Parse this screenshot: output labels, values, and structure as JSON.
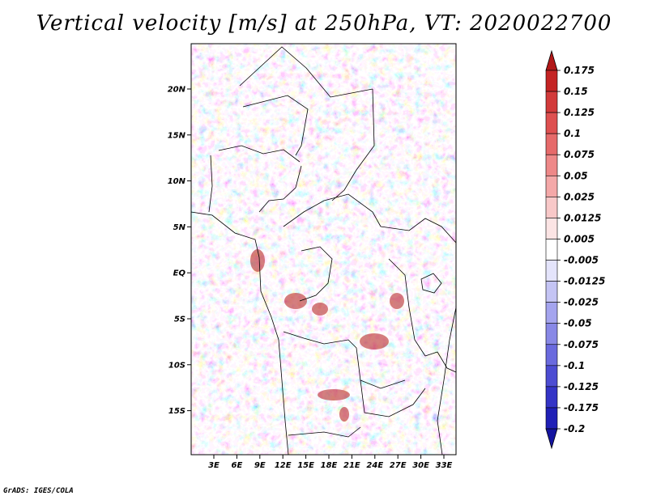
{
  "title": "Vertical velocity [m/s] at 250hPa, VT: 2020022700",
  "footer": "GrADS: IGES/COLA",
  "map": {
    "lat_labels": [
      "20N",
      "15N",
      "10N",
      "5N",
      "EQ",
      "5S",
      "10S",
      "15S"
    ],
    "lon_labels": [
      "3E",
      "6E",
      "9E",
      "12E",
      "15E",
      "18E",
      "21E",
      "24E",
      "27E",
      "30E",
      "33E"
    ]
  },
  "colorbar": {
    "labels": [
      "0.175",
      "0.15",
      "0.125",
      "0.1",
      "0.075",
      "0.05",
      "0.025",
      "0.0125",
      "0.005",
      "-0.005",
      "-0.0125",
      "-0.025",
      "-0.05",
      "-0.075",
      "-0.1",
      "-0.125",
      "-0.175",
      "-0.2"
    ],
    "colors": [
      "#b21818",
      "#c42424",
      "#d23a3a",
      "#de5050",
      "#e66a6a",
      "#ee8888",
      "#f4a8a8",
      "#f8c8c8",
      "#fbe4e4",
      "#ffffff",
      "#e4e4fb",
      "#c4c4f4",
      "#a4a4ee",
      "#8888e6",
      "#6a6ade",
      "#4c4cd2",
      "#3434c6",
      "#2020b6",
      "#1414a0"
    ]
  }
}
